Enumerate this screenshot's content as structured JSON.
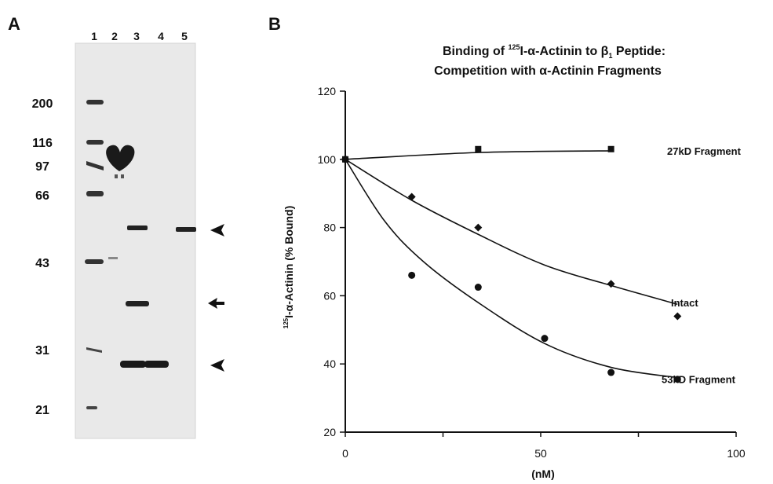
{
  "panels": {
    "a_label": "A",
    "b_label": "B"
  },
  "gel": {
    "lanes": [
      "1",
      "2",
      "3",
      "4",
      "5"
    ],
    "markers": [
      "200",
      "116",
      "97",
      "66",
      "43",
      "31",
      "21"
    ]
  },
  "chart_data": {
    "type": "line",
    "title_line1_prefix": "Binding of ",
    "title_sup": "125",
    "title_line1_main": "I-α-Actinin to β",
    "title_sub": "1",
    "title_line1_suffix": " Peptide:",
    "title_line2": "Competition with α-Actinin Fragments",
    "ylabel_sup": "125",
    "ylabel": "I-α-Actinin (% Bound)",
    "xlabel": "(nM)",
    "xlim": [
      0,
      100
    ],
    "ylim": [
      20,
      120
    ],
    "xticks": [
      "0",
      "50",
      "100"
    ],
    "yticks": [
      "20",
      "40",
      "60",
      "80",
      "100",
      "120"
    ],
    "series": [
      {
        "name": "27kD Fragment",
        "marker": "square",
        "points": [
          [
            0,
            100
          ],
          [
            34,
            103
          ],
          [
            68,
            103
          ]
        ],
        "curve": [
          [
            0,
            100
          ],
          [
            34,
            102
          ],
          [
            68,
            102.5
          ]
        ]
      },
      {
        "name": "Intact",
        "marker": "diamond",
        "points": [
          [
            0,
            100
          ],
          [
            17,
            89
          ],
          [
            34,
            80
          ],
          [
            68,
            63.5
          ],
          [
            85,
            54
          ]
        ],
        "curve": [
          [
            0,
            100
          ],
          [
            17,
            88
          ],
          [
            34,
            78
          ],
          [
            51,
            69
          ],
          [
            68,
            63
          ],
          [
            85,
            57.5
          ]
        ]
      },
      {
        "name": "53kD Fragment",
        "marker": "circle",
        "points": [
          [
            0,
            100
          ],
          [
            17,
            66
          ],
          [
            34,
            62.5
          ],
          [
            51,
            47.5
          ],
          [
            68,
            37.5
          ],
          [
            85,
            35.5
          ]
        ],
        "curve": [
          [
            0,
            100
          ],
          [
            10,
            82
          ],
          [
            20,
            70
          ],
          [
            34,
            58
          ],
          [
            51,
            46
          ],
          [
            68,
            39
          ],
          [
            85,
            36
          ]
        ]
      }
    ]
  }
}
